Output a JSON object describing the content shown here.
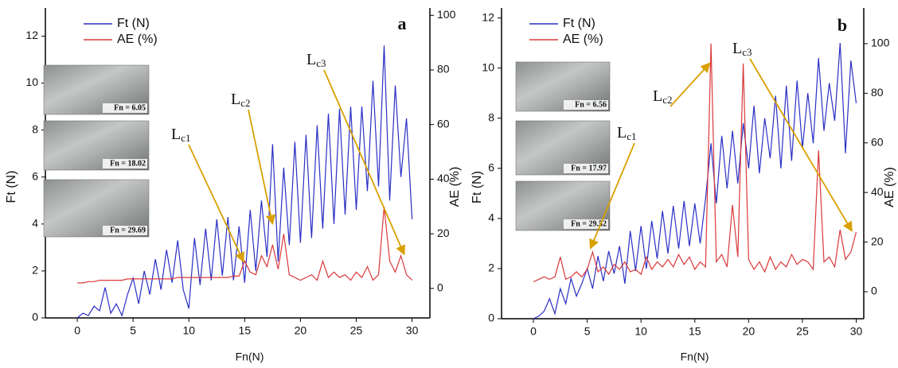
{
  "chart_data": [
    {
      "type": "line",
      "panel": "a",
      "xlabel": "Fn(N)",
      "ylabel": "Ft (N)",
      "y2label": "AE (%)",
      "xlim": [
        -2.86,
        31.6
      ],
      "xticks": [
        0,
        5,
        10,
        15,
        20,
        25,
        30
      ],
      "ylim": [
        0,
        13.2
      ],
      "yticks": [
        0,
        2,
        4,
        6,
        8,
        10,
        12
      ],
      "y2lim": [
        -10.8,
        102.7
      ],
      "y2ticks": [
        0,
        20,
        40,
        60,
        80,
        100
      ],
      "x": [
        0,
        0.5,
        1,
        1.5,
        2,
        2.5,
        3,
        3.5,
        4,
        4.5,
        5,
        5.5,
        6,
        6.5,
        7,
        7.5,
        8,
        8.5,
        9,
        9.5,
        10,
        10.5,
        11,
        11.5,
        12,
        12.5,
        13,
        13.5,
        14,
        14.5,
        15,
        15.5,
        16,
        16.5,
        17,
        17.5,
        18,
        18.5,
        19,
        19.5,
        20,
        20.5,
        21,
        21.5,
        22,
        22.5,
        23,
        23.5,
        24,
        24.5,
        25,
        25.5,
        26,
        26.5,
        27,
        27.5,
        28,
        28.5,
        29,
        29.5,
        30
      ],
      "series": [
        {
          "name": "Ft (N)",
          "color": "#2a2fc4",
          "axis": "y",
          "values": [
            0,
            0.2,
            0.1,
            0.5,
            0.3,
            1.3,
            0.2,
            0.6,
            0.1,
            1.0,
            1.7,
            0.6,
            2.0,
            1.0,
            2.5,
            1.2,
            2.9,
            1.5,
            3.3,
            1.2,
            0.4,
            3.4,
            1.4,
            3.8,
            1.6,
            4.2,
            1.8,
            4.3,
            1.6,
            3.9,
            1.5,
            4.6,
            2.0,
            5.0,
            2.6,
            7.4,
            2.4,
            6.4,
            3.1,
            7.5,
            3.2,
            7.8,
            3.4,
            8.2,
            3.8,
            8.7,
            4.0,
            8.9,
            4.4,
            9.0,
            4.6,
            9.0,
            5.4,
            10.1,
            5.6,
            11.6,
            5.0,
            9.9,
            6.0,
            8.5,
            4.2
          ]
        },
        {
          "name": "AE (%)",
          "color": "#d9383a",
          "axis": "y2",
          "values": [
            2,
            2,
            2.5,
            2.5,
            3,
            3,
            3,
            3,
            3,
            3.5,
            3.5,
            3.5,
            3.5,
            3.5,
            3.5,
            3.5,
            3.5,
            3.5,
            4,
            4,
            4,
            4,
            4,
            4,
            4,
            4,
            4,
            4,
            4.5,
            4.5,
            10,
            6,
            5,
            12,
            8,
            16,
            7,
            20,
            5,
            4,
            3,
            4,
            5,
            3,
            10,
            4,
            6,
            4,
            5,
            3,
            6,
            4,
            8,
            3,
            5,
            30,
            10,
            6,
            12,
            5,
            3
          ]
        }
      ],
      "annotations": [
        {
          "label": "L",
          "sub": "c1",
          "x": 14.9,
          "y": 2.4
        },
        {
          "label": "L",
          "sub": "c2",
          "x": 17.5,
          "y": 4.0
        },
        {
          "label": "L",
          "sub": "c3",
          "x": 29.3,
          "y": 2.7
        }
      ],
      "inset_labels": [
        "Fn = 6.05",
        "Fn = 18.02",
        "Fn = 29.69"
      ]
    },
    {
      "type": "line",
      "panel": "b",
      "xlabel": "Fn(N)",
      "ylabel": "Ft (N)",
      "y2label": "AE (%)",
      "xlim": [
        -2.96,
        30.7
      ],
      "xticks": [
        0,
        5,
        10,
        15,
        20,
        25,
        30
      ],
      "ylim": [
        0,
        12.4
      ],
      "yticks": [
        0,
        2,
        4,
        6,
        8,
        10,
        12
      ],
      "y2lim": [
        -10.9,
        114.4
      ],
      "y2ticks": [
        0,
        20,
        40,
        60,
        80,
        100
      ],
      "x": [
        0,
        0.5,
        1,
        1.5,
        2,
        2.5,
        3,
        3.5,
        4,
        4.5,
        5,
        5.5,
        6,
        6.5,
        7,
        7.5,
        8,
        8.5,
        9,
        9.5,
        10,
        10.5,
        11,
        11.5,
        12,
        12.5,
        13,
        13.5,
        14,
        14.5,
        15,
        15.5,
        16,
        16.5,
        17,
        17.5,
        18,
        18.5,
        19,
        19.5,
        20,
        20.5,
        21,
        21.5,
        22,
        22.5,
        23,
        23.5,
        24,
        24.5,
        25,
        25.5,
        26,
        26.5,
        27,
        27.5,
        28,
        28.5,
        29,
        29.5,
        30
      ],
      "series": [
        {
          "name": "Ft (N)",
          "color": "#2a2fc4",
          "axis": "y",
          "values": [
            0,
            0.1,
            0.3,
            0.8,
            0.2,
            1.2,
            0.6,
            1.6,
            0.9,
            1.4,
            2.0,
            1.2,
            2.5,
            1.5,
            2.7,
            1.8,
            2.9,
            1.4,
            3.5,
            1.9,
            3.7,
            2.0,
            3.9,
            2.4,
            4.3,
            2.6,
            4.5,
            2.8,
            4.7,
            2.9,
            4.6,
            3.0,
            4.8,
            7.0,
            4.6,
            7.3,
            5.2,
            7.5,
            5.4,
            7.8,
            6.0,
            8.5,
            5.8,
            8.0,
            6.4,
            8.9,
            6.0,
            9.3,
            6.3,
            9.5,
            6.8,
            9.0,
            7.0,
            10.4,
            7.5,
            9.4,
            7.9,
            11.0,
            6.6,
            10.3,
            8.6
          ]
        },
        {
          "name": "AE (%)",
          "color": "#d9383a",
          "axis": "y2",
          "values": [
            4,
            5,
            6,
            5,
            6,
            14,
            5,
            6,
            8,
            6,
            9,
            16,
            8,
            10,
            7,
            11,
            9,
            12,
            8,
            9,
            7,
            14,
            9,
            12,
            10,
            13,
            10,
            15,
            11,
            14,
            9,
            12,
            10,
            100,
            12,
            15,
            10,
            35,
            14,
            92,
            13,
            9,
            12,
            8,
            14,
            9,
            12,
            10,
            15,
            11,
            13,
            12,
            9,
            57,
            12,
            14,
            10,
            25,
            13,
            16,
            24
          ]
        }
      ],
      "annotations": [
        {
          "label": "L",
          "sub": "c1",
          "x": 5.3,
          "y": 2.8
        },
        {
          "label": "L",
          "sub": "c2",
          "x": 16.4,
          "y": 10.2
        },
        {
          "label": "L",
          "sub": "c3",
          "x": 29.6,
          "y": 3.5
        }
      ],
      "inset_labels": [
        "Fn = 6.56",
        "Fn = 17.97",
        "Fn = 29.52"
      ]
    }
  ]
}
